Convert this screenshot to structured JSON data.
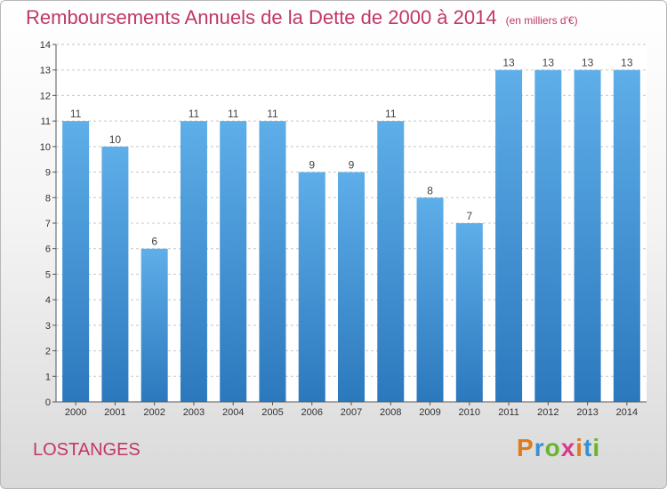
{
  "title": "Remboursements Annuels de la Dette de 2000 à 2014",
  "unit": "(en milliers d'€)",
  "commune": "LOSTANGES",
  "logo": {
    "text": "Proxiti",
    "colors": [
      "#e07a1f",
      "#3a8fd0",
      "#6ab42d",
      "#d83a8a",
      "#e07a1f",
      "#3a8fd0",
      "#6ab42d"
    ]
  },
  "chart_data": {
    "type": "bar",
    "title": "Remboursements Annuels de la Dette de 2000 à 2014",
    "xlabel": "",
    "ylabel": "en milliers d'€",
    "categories": [
      "2000",
      "2001",
      "2002",
      "2003",
      "2004",
      "2005",
      "2006",
      "2007",
      "2008",
      "2009",
      "2010",
      "2011",
      "2012",
      "2013",
      "2014"
    ],
    "values": [
      11,
      10,
      6,
      11,
      11,
      11,
      9,
      9,
      11,
      8,
      7,
      13,
      13,
      13,
      13
    ],
    "ylim": [
      0,
      14
    ],
    "yticks": [
      "0",
      "1",
      "2",
      "3",
      "4",
      "5",
      "6",
      "7",
      "8",
      "9",
      "10",
      "11",
      "12",
      "13",
      "14"
    ],
    "ytick_labels": [
      "0",
      "1",
      "2",
      "3",
      "4",
      "5",
      "6",
      "7",
      "8",
      "9",
      "10",
      "11",
      "12",
      "13",
      "14"
    ],
    "grid": "horizontal dashed",
    "bar_color": "#3d8fd6"
  }
}
